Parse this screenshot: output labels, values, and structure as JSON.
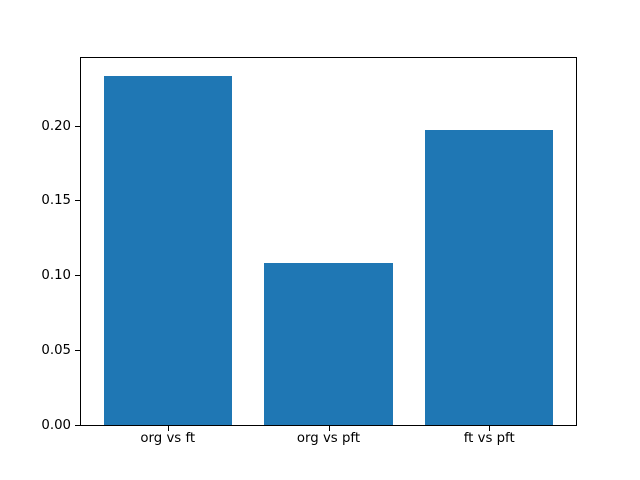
{
  "chart_data": {
    "type": "bar",
    "categories": [
      "org vs ft",
      "org vs pft",
      "ft vs pft"
    ],
    "values": [
      0.2335,
      0.1082,
      0.1974
    ],
    "title": "",
    "xlabel": "",
    "ylabel": "",
    "ylim": [
      0,
      0.2452
    ],
    "ytick_values": [
      0,
      0.05,
      0.1,
      0.15,
      0.2
    ],
    "ytick_labels": [
      "0.00",
      "0.05",
      "0.10",
      "0.15",
      "0.20"
    ],
    "bar_color": "#1f77b4",
    "axis_color": "#000000",
    "background_color": "#ffffff",
    "grid": false,
    "legend": "none",
    "bar_width_fraction": 0.8,
    "x_margin": 0.54
  }
}
